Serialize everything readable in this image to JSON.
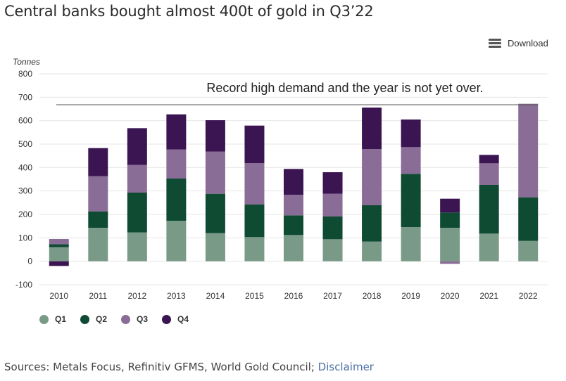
{
  "title": "Central banks bought almost 400t of gold in Q3’22",
  "download_label": "Download",
  "sources_text": "Sources: Metals Focus, Refinitiv GFMS, World Gold Council; ",
  "disclaimer_label": "Disclaimer",
  "chart_data": {
    "type": "bar",
    "stacked": true,
    "ylabel": "Tonnes",
    "ylim": [
      -100,
      800
    ],
    "yticks": [
      -100,
      0,
      100,
      200,
      300,
      400,
      500,
      600,
      700,
      800
    ],
    "categories": [
      "2010",
      "2011",
      "2012",
      "2013",
      "2014",
      "2015",
      "2016",
      "2017",
      "2018",
      "2019",
      "2020",
      "2021",
      "2022"
    ],
    "series": [
      {
        "name": "Q1",
        "color": "#7a9a88",
        "values": [
          60,
          143,
          123,
          173,
          120,
          103,
          112,
          94,
          84,
          146,
          143,
          118,
          87
        ]
      },
      {
        "name": "Q2",
        "color": "#0f4a33",
        "values": [
          13,
          70,
          170,
          180,
          168,
          140,
          84,
          97,
          155,
          227,
          65,
          208,
          186
        ]
      },
      {
        "name": "Q3",
        "color": "#8a6d96",
        "values": [
          22,
          150,
          118,
          124,
          180,
          176,
          88,
          97,
          240,
          114,
          -11,
          92,
          399
        ]
      },
      {
        "name": "Q4",
        "color": "#3b1552",
        "values": [
          -20,
          120,
          157,
          150,
          134,
          160,
          110,
          92,
          177,
          118,
          59,
          36,
          0
        ]
      }
    ],
    "annotation": {
      "text": "Record high demand and the year is not yet over.",
      "y": 668
    },
    "legend_position": "bottom-left",
    "grid": true
  }
}
